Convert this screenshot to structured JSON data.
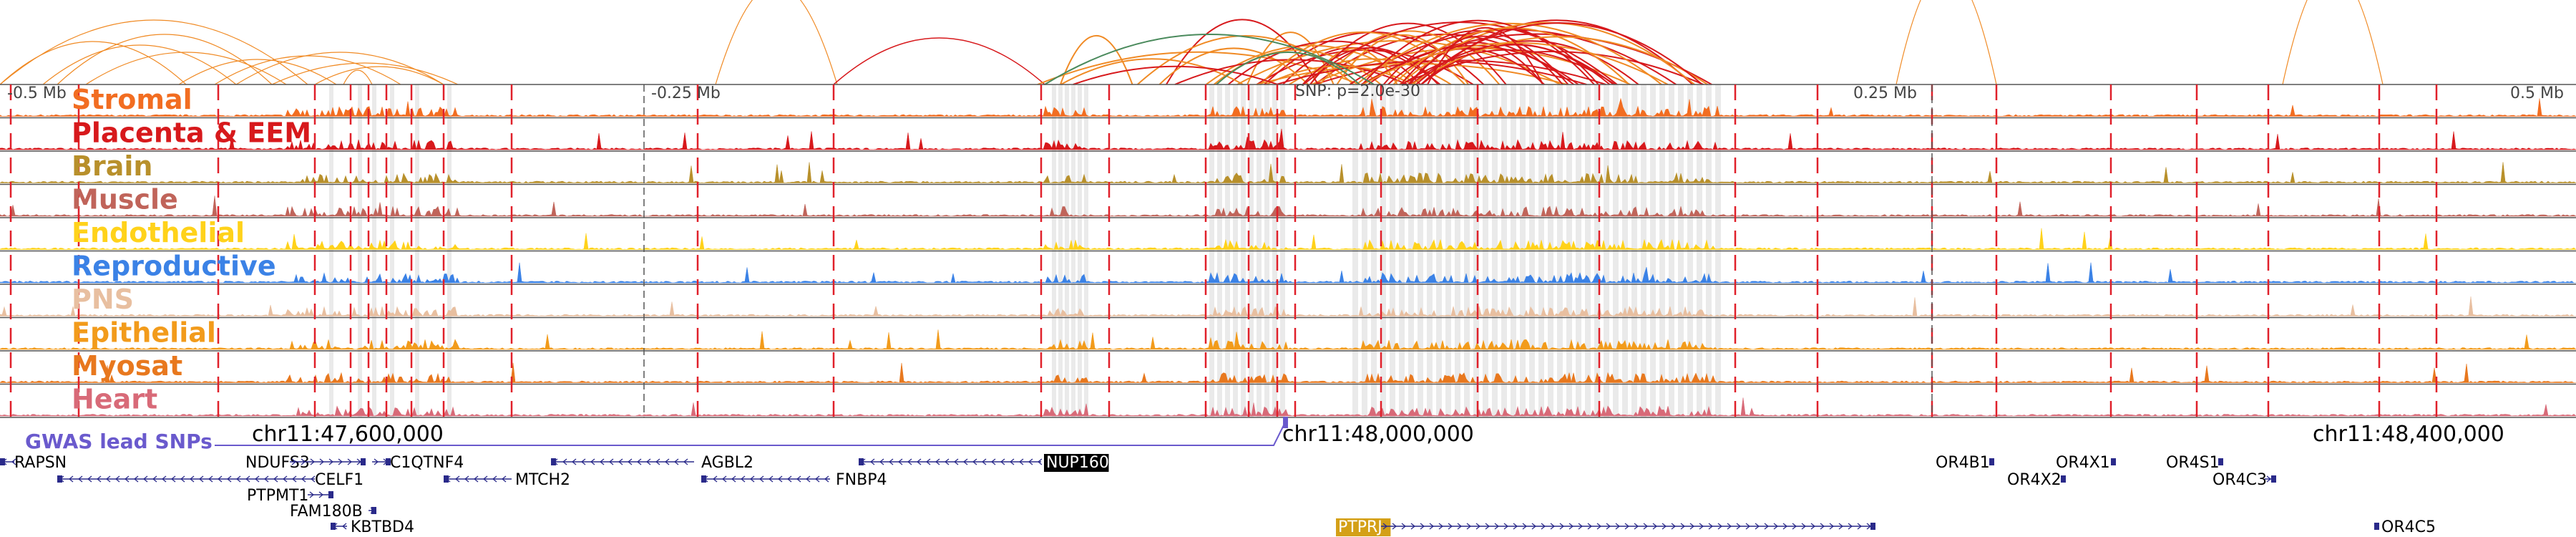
{
  "tracks": [
    {
      "label": "Stromal",
      "color": "#f26d21"
    },
    {
      "label": "Placenta & EEM",
      "color": "#d7191c"
    },
    {
      "label": "Brain",
      "color": "#b8902b"
    },
    {
      "label": "Muscle",
      "color": "#c0645a"
    },
    {
      "label": "Endothelial",
      "color": "#ffd21a"
    },
    {
      "label": "Reproductive",
      "color": "#3b82e6"
    },
    {
      "label": "PNS",
      "color": "#e8bfa0"
    },
    {
      "label": "Epithelial",
      "color": "#f29b1b"
    },
    {
      "label": "Myosat",
      "color": "#e8781e"
    },
    {
      "label": "Heart",
      "color": "#d86a78"
    }
  ],
  "top_axis": {
    "ticks": [
      "-0.5 Mb",
      "-0.25 Mb",
      "0.25 Mb",
      "0.5 Mb"
    ],
    "snp_label": "SNP: p=2.0e-30"
  },
  "gwas": {
    "label": "GWAS lead SNPs",
    "color": "#6a5acd"
  },
  "coords": [
    "chr11:47,600,000",
    "chr11:48,000,000",
    "chr11:48,400,000"
  ],
  "genes": [
    "RAPSN",
    "NDUFS3",
    "C1QTNF4",
    "CELF1",
    "PTPMT1",
    "FAM180B",
    "KBTBD4",
    "MTCH2",
    "AGBL2",
    "FNBP4",
    "NUP160",
    "PTPRJ",
    "OR4B1",
    "OR4X2",
    "OR4X1",
    "OR4S1",
    "OR4C3",
    "OR4C5"
  ],
  "colors": {
    "loop_orange": "#f08a24",
    "loop_red": "#d7191c",
    "loop_green": "#4a8a5c",
    "gene": "#2a2a8a",
    "nup160_bg": "#000000",
    "ptprj_bg": "#d4a017",
    "marker": "#e0202a"
  }
}
